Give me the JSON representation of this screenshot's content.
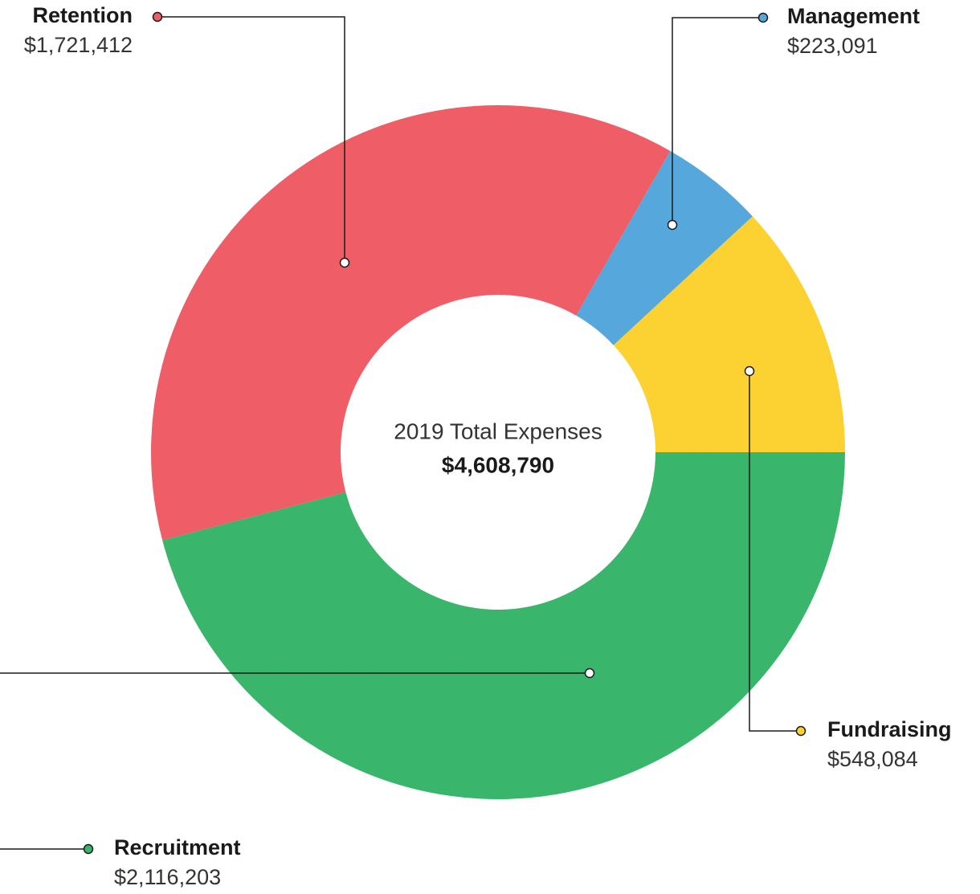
{
  "chart_data": {
    "type": "donut",
    "title": "2019 Total Expenses",
    "total_label": "$4,608,790",
    "categories": [
      "Recruitment",
      "Retention",
      "Management",
      "Fundraising"
    ],
    "values": [
      2116203,
      1721412,
      223091,
      548084
    ],
    "value_labels": [
      "$2,116,203",
      "$1,721,412",
      "$223,091",
      "$548,084"
    ],
    "colors": [
      "#39b66b",
      "#ef5d67",
      "#56a7dc",
      "#fcd232"
    ],
    "start_angle": 0,
    "direction": "clockwise"
  }
}
